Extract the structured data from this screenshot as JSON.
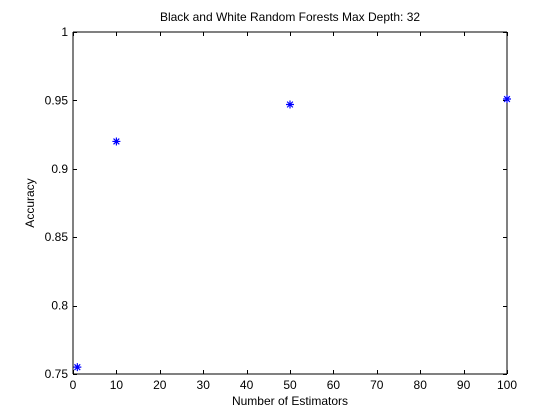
{
  "chart_data": {
    "type": "scatter",
    "title": "Black and White Random Forests Max Depth: 32",
    "xlabel": "Number of Estimators",
    "ylabel": "Accuracy",
    "xlim": [
      0,
      100
    ],
    "ylim": [
      0.75,
      1
    ],
    "xticks": [
      0,
      10,
      20,
      30,
      40,
      50,
      60,
      70,
      80,
      90,
      100
    ],
    "xtick_labels": [
      "0",
      "10",
      "20",
      "30",
      "40",
      "50",
      "60",
      "70",
      "80",
      "90",
      "100"
    ],
    "yticks": [
      0.75,
      0.8,
      0.85,
      0.9,
      0.95,
      1
    ],
    "ytick_labels": [
      "0.75",
      "0.8",
      "0.85",
      "0.9",
      "0.95",
      "1"
    ],
    "grid": false,
    "marker": "*",
    "marker_color": "#0000ff",
    "axis_color": "#000000",
    "background": "#ffffff",
    "series": [
      {
        "x": [
          1,
          10,
          50,
          100
        ],
        "y": [
          0.755,
          0.92,
          0.947,
          0.951
        ]
      }
    ]
  }
}
